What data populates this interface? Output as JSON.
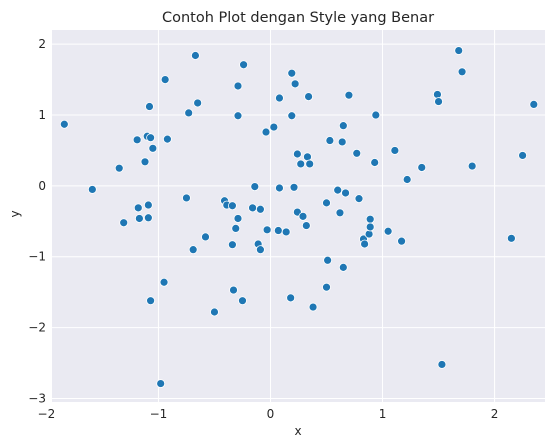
{
  "chart_data": {
    "type": "scatter",
    "title": "Contoh Plot dengan Style yang Benar",
    "xlabel": "x",
    "ylabel": "y",
    "xlim": [
      -1.95,
      2.45
    ],
    "ylim": [
      -3.05,
      2.2
    ],
    "xticks": [
      -2,
      -1,
      0,
      1,
      2
    ],
    "yticks": [
      -3,
      -2,
      -1,
      0,
      1,
      2
    ],
    "grid": true,
    "background_color": "#eaeaf2",
    "point_color": "#1f77b4",
    "series": [
      {
        "points": [
          [
            -1.84,
            0.87
          ],
          [
            -1.59,
            -0.05
          ],
          [
            -1.35,
            0.25
          ],
          [
            -1.31,
            -0.52
          ],
          [
            -1.19,
            0.65
          ],
          [
            -1.18,
            -0.31
          ],
          [
            -1.17,
            -0.46
          ],
          [
            -1.12,
            0.34
          ],
          [
            -1.1,
            0.7
          ],
          [
            -1.09,
            -0.45
          ],
          [
            -1.09,
            -0.27
          ],
          [
            -1.08,
            1.12
          ],
          [
            -1.07,
            0.68
          ],
          [
            -1.07,
            -1.62
          ],
          [
            -1.05,
            0.53
          ],
          [
            -0.98,
            -2.79
          ],
          [
            -0.95,
            -1.36
          ],
          [
            -0.94,
            1.5
          ],
          [
            -0.92,
            0.66
          ],
          [
            -0.75,
            -0.17
          ],
          [
            -0.73,
            1.03
          ],
          [
            -0.69,
            -0.9
          ],
          [
            -0.67,
            1.84
          ],
          [
            -0.65,
            1.17
          ],
          [
            -0.58,
            -0.72
          ],
          [
            -0.5,
            -1.78
          ],
          [
            -0.41,
            -0.21
          ],
          [
            -0.39,
            -0.27
          ],
          [
            -0.34,
            -0.28
          ],
          [
            -0.34,
            -0.83
          ],
          [
            -0.33,
            -1.47
          ],
          [
            -0.31,
            -0.6
          ],
          [
            -0.29,
            0.99
          ],
          [
            -0.29,
            -0.46
          ],
          [
            -0.29,
            1.41
          ],
          [
            -0.25,
            -1.62
          ],
          [
            -0.24,
            1.71
          ],
          [
            -0.16,
            -0.31
          ],
          [
            -0.14,
            -0.01
          ],
          [
            -0.11,
            -0.82
          ],
          [
            -0.09,
            -0.9
          ],
          [
            -0.09,
            -0.33
          ],
          [
            -0.04,
            0.76
          ],
          [
            -0.03,
            -0.62
          ],
          [
            0.03,
            0.83
          ],
          [
            0.07,
            -0.63
          ],
          [
            0.08,
            1.24
          ],
          [
            0.08,
            -0.03
          ],
          [
            0.14,
            -0.65
          ],
          [
            0.18,
            -1.58
          ],
          [
            0.19,
            1.59
          ],
          [
            0.19,
            0.99
          ],
          [
            0.21,
            -0.02
          ],
          [
            0.22,
            1.44
          ],
          [
            0.24,
            0.45
          ],
          [
            0.24,
            -0.37
          ],
          [
            0.27,
            0.31
          ],
          [
            0.29,
            -0.43
          ],
          [
            0.32,
            -0.56
          ],
          [
            0.33,
            0.41
          ],
          [
            0.34,
            1.26
          ],
          [
            0.35,
            0.31
          ],
          [
            0.38,
            -1.71
          ],
          [
            0.5,
            -1.43
          ],
          [
            0.5,
            -0.24
          ],
          [
            0.51,
            -1.05
          ],
          [
            0.53,
            0.64
          ],
          [
            0.6,
            -0.06
          ],
          [
            0.62,
            -0.38
          ],
          [
            0.64,
            0.62
          ],
          [
            0.65,
            0.85
          ],
          [
            0.65,
            -1.15
          ],
          [
            0.67,
            -0.1
          ],
          [
            0.7,
            1.28
          ],
          [
            0.77,
            0.46
          ],
          [
            0.79,
            -0.18
          ],
          [
            0.83,
            -0.75
          ],
          [
            0.84,
            -0.82
          ],
          [
            0.88,
            -0.68
          ],
          [
            0.89,
            -0.47
          ],
          [
            0.89,
            -0.58
          ],
          [
            0.93,
            0.33
          ],
          [
            0.94,
            1.0
          ],
          [
            1.05,
            -0.64
          ],
          [
            1.11,
            0.5
          ],
          [
            1.17,
            -0.78
          ],
          [
            1.22,
            0.09
          ],
          [
            1.35,
            0.26
          ],
          [
            1.49,
            1.29
          ],
          [
            1.5,
            1.19
          ],
          [
            1.53,
            -2.52
          ],
          [
            1.68,
            1.91
          ],
          [
            1.71,
            1.61
          ],
          [
            1.8,
            0.28
          ],
          [
            2.15,
            -0.74
          ],
          [
            2.25,
            0.43
          ],
          [
            2.35,
            1.15
          ]
        ]
      }
    ]
  }
}
